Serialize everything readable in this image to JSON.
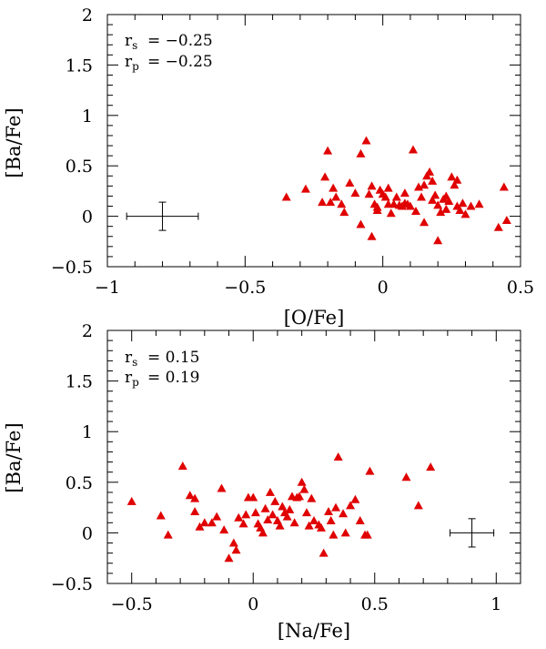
{
  "chart_data": [
    {
      "type": "scatter",
      "xlabel": "[O/Fe]",
      "ylabel": "[Ba/Fe]",
      "xlim": [
        -1,
        0.5
      ],
      "ylim": [
        -0.5,
        2
      ],
      "xticks": [
        "−1",
        "−0.5",
        "0",
        "0.5"
      ],
      "yticks": [
        "−0.5",
        "0",
        "0.5",
        "1",
        "1.5",
        "2"
      ],
      "annotations": {
        "rs_label": "r",
        "rs_sub": "s",
        "rs_value": "= −0.25",
        "rp_label": "r",
        "rp_sub": "p",
        "rp_value": "= −0.25"
      },
      "marker_color": "#e00000",
      "error_bar": {
        "x": -0.8,
        "y": 0,
        "xerr": 0.13,
        "yerr": 0.14
      },
      "points": [
        [
          -0.35,
          0.19
        ],
        [
          -0.28,
          0.27
        ],
        [
          -0.2,
          0.65
        ],
        [
          -0.21,
          0.39
        ],
        [
          -0.18,
          0.28
        ],
        [
          -0.17,
          0.19
        ],
        [
          -0.14,
          0.04
        ],
        [
          -0.22,
          0.14
        ],
        [
          -0.19,
          0.14
        ],
        [
          -0.15,
          0.12
        ],
        [
          -0.12,
          0.33
        ],
        [
          -0.1,
          0.23
        ],
        [
          -0.08,
          0.62
        ],
        [
          -0.06,
          0.75
        ],
        [
          -0.05,
          0.22
        ],
        [
          -0.04,
          0.3
        ],
        [
          -0.03,
          0.12
        ],
        [
          -0.02,
          0.09
        ],
        [
          -0.01,
          0.26
        ],
        [
          0.0,
          0.22
        ],
        [
          0.01,
          0.19
        ],
        [
          0.02,
          0.12
        ],
        [
          0.03,
          0.03
        ],
        [
          0.04,
          0.12
        ],
        [
          0.05,
          0.19
        ],
        [
          0.06,
          0.11
        ],
        [
          0.07,
          0.1
        ],
        [
          0.08,
          0.13
        ],
        [
          0.09,
          0.12
        ],
        [
          0.1,
          0.1
        ],
        [
          0.11,
          0.66
        ],
        [
          0.12,
          0.05
        ],
        [
          0.13,
          0.29
        ],
        [
          0.14,
          0.19
        ],
        [
          0.15,
          0.31
        ],
        [
          0.16,
          0.4
        ],
        [
          0.17,
          0.44
        ],
        [
          0.18,
          0.16
        ],
        [
          0.19,
          0.21
        ],
        [
          0.2,
          0.11
        ],
        [
          0.21,
          0.04
        ],
        [
          0.22,
          0.17
        ],
        [
          0.23,
          0.2
        ],
        [
          0.24,
          0.15
        ],
        [
          0.25,
          0.39
        ],
        [
          0.26,
          0.31
        ],
        [
          0.27,
          0.1
        ],
        [
          0.28,
          0.06
        ],
        [
          0.29,
          0.13
        ],
        [
          0.3,
          0.02
        ],
        [
          0.32,
          0.1
        ],
        [
          0.35,
          0.12
        ],
        [
          0.2,
          -0.24
        ],
        [
          -0.04,
          -0.2
        ],
        [
          -0.08,
          -0.08
        ],
        [
          0.15,
          -0.06
        ],
        [
          0.42,
          -0.11
        ],
        [
          0.44,
          0.29
        ],
        [
          0.45,
          -0.04
        ],
        [
          0.08,
          0.23
        ],
        [
          0.02,
          0.28
        ],
        [
          0.18,
          0.35
        ],
        [
          0.27,
          0.36
        ],
        [
          -0.02,
          0.06
        ],
        [
          0.23,
          0.07
        ]
      ]
    },
    {
      "type": "scatter",
      "xlabel": "[Na/Fe]",
      "ylabel": "[Ba/Fe]",
      "xlim": [
        -0.6,
        1.1
      ],
      "ylim": [
        -0.5,
        2
      ],
      "xticks": [
        "−0.5",
        "0",
        "0.5",
        "1"
      ],
      "yticks": [
        "−0.5",
        "0",
        "0.5",
        "1",
        "1.5",
        "2"
      ],
      "annotations": {
        "rs_label": "r",
        "rs_sub": "s",
        "rs_value": "= 0.15",
        "rp_label": "r",
        "rp_sub": "p",
        "rp_value": "= 0.19"
      },
      "marker_color": "#e00000",
      "error_bar": {
        "x": 0.9,
        "y": 0,
        "xerr": 0.09,
        "yerr": 0.14
      },
      "points": [
        [
          -0.5,
          0.31
        ],
        [
          -0.38,
          0.17
        ],
        [
          -0.35,
          -0.02
        ],
        [
          -0.29,
          0.66
        ],
        [
          -0.26,
          0.37
        ],
        [
          -0.24,
          0.34
        ],
        [
          -0.24,
          0.21
        ],
        [
          -0.22,
          0.06
        ],
        [
          -0.2,
          0.1
        ],
        [
          -0.17,
          0.1
        ],
        [
          -0.15,
          0.16
        ],
        [
          -0.13,
          0.44
        ],
        [
          -0.12,
          0.03
        ],
        [
          -0.1,
          -0.25
        ],
        [
          -0.08,
          -0.1
        ],
        [
          -0.07,
          -0.17
        ],
        [
          -0.06,
          0.15
        ],
        [
          -0.04,
          0.09
        ],
        [
          -0.03,
          0.18
        ],
        [
          -0.02,
          0.35
        ],
        [
          0.0,
          0.35
        ],
        [
          0.01,
          0.2
        ],
        [
          0.02,
          0.09
        ],
        [
          0.03,
          0.05
        ],
        [
          0.04,
          0.0
        ],
        [
          0.05,
          0.24
        ],
        [
          0.06,
          0.13
        ],
        [
          0.07,
          0.4
        ],
        [
          0.08,
          0.18
        ],
        [
          0.09,
          0.31
        ],
        [
          0.1,
          0.12
        ],
        [
          0.11,
          0.07
        ],
        [
          0.12,
          0.26
        ],
        [
          0.13,
          0.2
        ],
        [
          0.14,
          0.16
        ],
        [
          0.15,
          0.23
        ],
        [
          0.16,
          0.36
        ],
        [
          0.17,
          0.1
        ],
        [
          0.18,
          0.35
        ],
        [
          0.19,
          0.36
        ],
        [
          0.2,
          0.5
        ],
        [
          0.21,
          0.43
        ],
        [
          0.22,
          0.2
        ],
        [
          0.23,
          0.07
        ],
        [
          0.24,
          0.34
        ],
        [
          0.25,
          0.12
        ],
        [
          0.27,
          0.08
        ],
        [
          0.28,
          0.05
        ],
        [
          0.29,
          -0.2
        ],
        [
          0.31,
          0.21
        ],
        [
          0.32,
          0.12
        ],
        [
          0.33,
          -0.02
        ],
        [
          0.34,
          0.25
        ],
        [
          0.35,
          0.75
        ],
        [
          0.37,
          0.19
        ],
        [
          0.38,
          0.0
        ],
        [
          0.4,
          0.27
        ],
        [
          0.42,
          0.33
        ],
        [
          0.44,
          0.12
        ],
        [
          0.46,
          -0.02
        ],
        [
          0.48,
          0.61
        ],
        [
          0.47,
          -0.02
        ],
        [
          0.63,
          0.55
        ],
        [
          0.68,
          0.27
        ],
        [
          0.73,
          0.65
        ]
      ]
    }
  ]
}
